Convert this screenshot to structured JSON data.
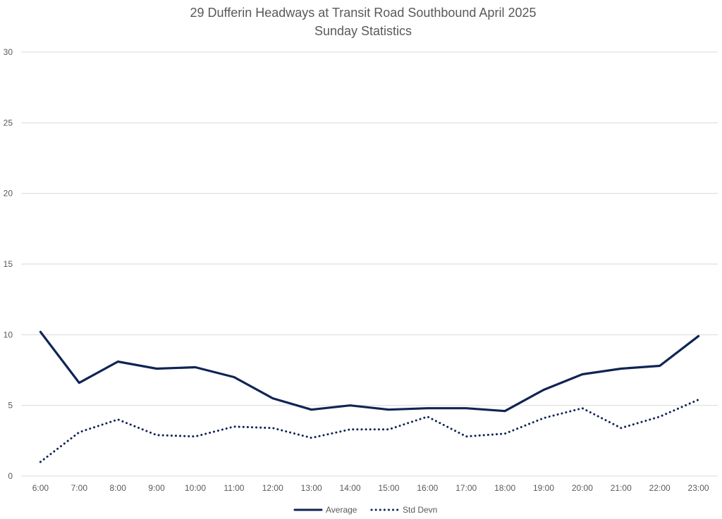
{
  "chart_data": {
    "type": "line",
    "title": "29 Dufferin Headways at Transit Road Southbound April 2025",
    "subtitle": "Sunday Statistics",
    "xlabel": "",
    "ylabel": "",
    "categories": [
      "6:00",
      "7:00",
      "8:00",
      "9:00",
      "10:00",
      "11:00",
      "12:00",
      "13:00",
      "14:00",
      "15:00",
      "16:00",
      "17:00",
      "18:00",
      "19:00",
      "20:00",
      "21:00",
      "22:00",
      "23:00"
    ],
    "ylim": [
      0,
      30
    ],
    "yticks": [
      0,
      5,
      10,
      15,
      20,
      25,
      30
    ],
    "grid": true,
    "legend_position": "bottom",
    "series": [
      {
        "name": "Average",
        "style": "solid",
        "color": "#0f2454",
        "values": [
          10.2,
          6.6,
          8.1,
          7.6,
          7.7,
          7.0,
          5.5,
          4.7,
          5.0,
          4.7,
          4.8,
          4.8,
          4.6,
          6.1,
          7.2,
          7.6,
          7.8,
          9.9
        ]
      },
      {
        "name": "Std Devn",
        "style": "dotted",
        "color": "#0f2454",
        "values": [
          1.0,
          3.1,
          4.0,
          2.9,
          2.8,
          3.5,
          3.4,
          2.7,
          3.3,
          3.3,
          4.2,
          2.8,
          3.0,
          4.1,
          4.8,
          3.4,
          4.2,
          5.4
        ]
      }
    ]
  }
}
